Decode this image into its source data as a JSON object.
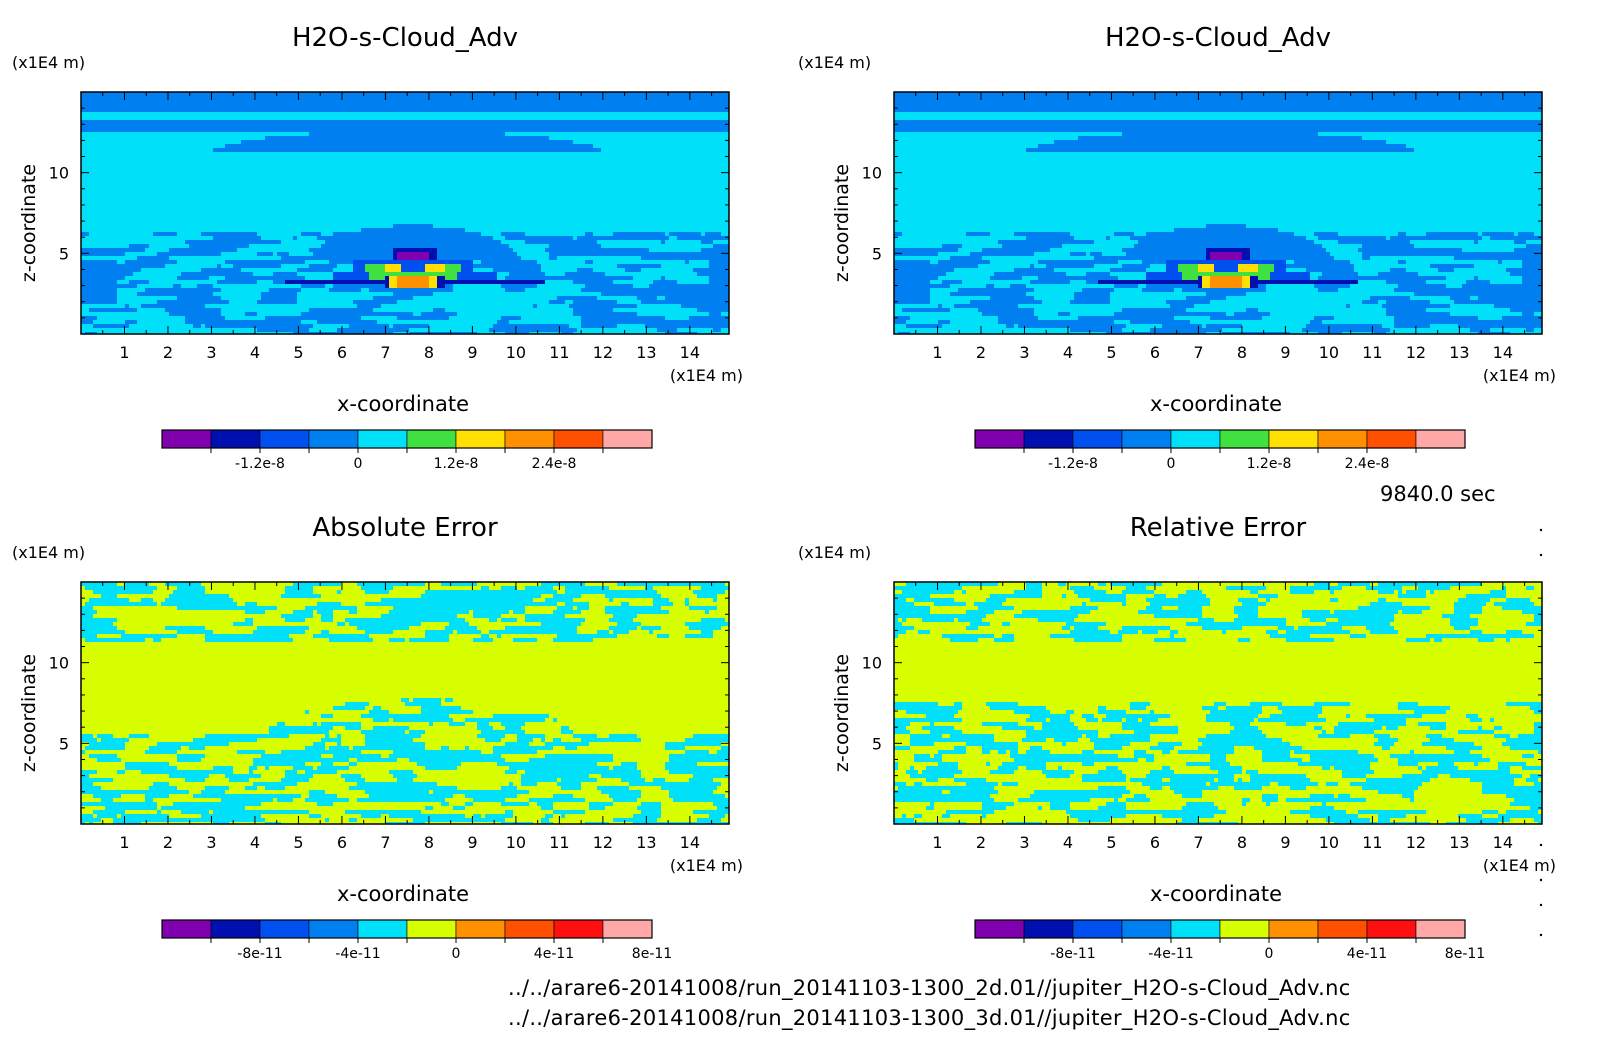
{
  "time_label": "9840.0 sec",
  "file_paths": [
    "../../arare6-20141008/run_20141103-1300_2d.01//jupiter_H2O-s-Cloud_Adv.nc",
    "../../arare6-20141008/run_20141103-1300_3d.01//jupiter_H2O-s-Cloud_Adv.nc"
  ],
  "chart_data": [
    {
      "type": "heatmap",
      "title": "H2O-s-Cloud_Adv",
      "xlabel": "x-coordinate",
      "ylabel": "z-coordinate",
      "x_unit": "(x1E4 m)",
      "y_unit": "(x1E4 m)",
      "x_ticks": [
        1,
        2,
        3,
        4,
        5,
        6,
        7,
        8,
        9,
        10,
        11,
        12,
        13,
        14
      ],
      "y_ticks": [
        5,
        10
      ],
      "xlim": [
        0,
        14.9
      ],
      "ylim": [
        0,
        15
      ],
      "colorbar": {
        "levels": [
          -1.8e-08,
          -1.2e-08,
          -6e-09,
          0,
          6e-09,
          1.2e-08,
          1.8e-08,
          2.4e-08,
          3e-08,
          3.6e-08
        ],
        "tick_labels": [
          "-1.2e-8",
          "0",
          "1.2e-8",
          "2.4e-8"
        ],
        "colors": [
          "#8000b0",
          "#0010b0",
          "#0050f0",
          "#0080f0",
          "#00e0f8",
          "#40e040",
          "#ffe000",
          "#ff9000",
          "#ff5000",
          "#ffa8a8"
        ]
      },
      "pattern": "field"
    },
    {
      "type": "heatmap",
      "title": "H2O-s-Cloud_Adv",
      "xlabel": "x-coordinate",
      "ylabel": "z-coordinate",
      "x_unit": "(x1E4 m)",
      "y_unit": "(x1E4 m)",
      "x_ticks": [
        1,
        2,
        3,
        4,
        5,
        6,
        7,
        8,
        9,
        10,
        11,
        12,
        13,
        14
      ],
      "y_ticks": [
        5,
        10
      ],
      "xlim": [
        0,
        14.9
      ],
      "ylim": [
        0,
        15
      ],
      "colorbar": {
        "levels": [
          -1.8e-08,
          -1.2e-08,
          -6e-09,
          0,
          6e-09,
          1.2e-08,
          1.8e-08,
          2.4e-08,
          3e-08,
          3.6e-08
        ],
        "tick_labels": [
          "-1.2e-8",
          "0",
          "1.2e-8",
          "2.4e-8"
        ],
        "colors": [
          "#8000b0",
          "#0010b0",
          "#0050f0",
          "#0080f0",
          "#00e0f8",
          "#40e040",
          "#ffe000",
          "#ff9000",
          "#ff5000",
          "#ffa8a8"
        ]
      },
      "pattern": "field"
    },
    {
      "type": "heatmap",
      "title": "Absolute Error",
      "xlabel": "x-coordinate",
      "ylabel": "z-coordinate",
      "x_unit": "(x1E4 m)",
      "y_unit": "(x1E4 m)",
      "x_ticks": [
        1,
        2,
        3,
        4,
        5,
        6,
        7,
        8,
        9,
        10,
        11,
        12,
        13,
        14
      ],
      "y_ticks": [
        5,
        10
      ],
      "xlim": [
        0,
        14.9
      ],
      "ylim": [
        0,
        15
      ],
      "colorbar": {
        "levels": [
          -1e-10,
          -8e-11,
          -6e-11,
          -4e-11,
          -2e-11,
          0,
          2e-11,
          4e-11,
          6e-11,
          8e-11
        ],
        "tick_labels": [
          "-8e-11",
          "-4e-11",
          "0",
          "4e-11",
          "8e-11"
        ],
        "colors": [
          "#8000b0",
          "#0010b0",
          "#0050f0",
          "#0080f0",
          "#00e0f8",
          "#d8ff00",
          "#ff9000",
          "#ff5000",
          "#ff1010",
          "#ffa8a8"
        ]
      },
      "pattern": "error_abs"
    },
    {
      "type": "heatmap",
      "title": "Relative Error",
      "xlabel": "x-coordinate",
      "ylabel": "z-coordinate",
      "x_unit": "(x1E4 m)",
      "y_unit": "(x1E4 m)",
      "x_ticks": [
        1,
        2,
        3,
        4,
        5,
        6,
        7,
        8,
        9,
        10,
        11,
        12,
        13,
        14
      ],
      "y_ticks": [
        5,
        10
      ],
      "xlim": [
        0,
        14.9
      ],
      "ylim": [
        0,
        15
      ],
      "colorbar": {
        "levels": [
          -1e-10,
          -8e-11,
          -6e-11,
          -4e-11,
          -2e-11,
          0,
          2e-11,
          4e-11,
          6e-11,
          8e-11
        ],
        "tick_labels": [
          "-8e-11",
          "-4e-11",
          "0",
          "4e-11",
          "8e-11"
        ],
        "colors": [
          "#8000b0",
          "#0010b0",
          "#0050f0",
          "#0080f0",
          "#00e0f8",
          "#d8ff00",
          "#ff9000",
          "#ff5000",
          "#ff1010",
          "#ffa8a8"
        ]
      },
      "pattern": "error_rel"
    }
  ]
}
